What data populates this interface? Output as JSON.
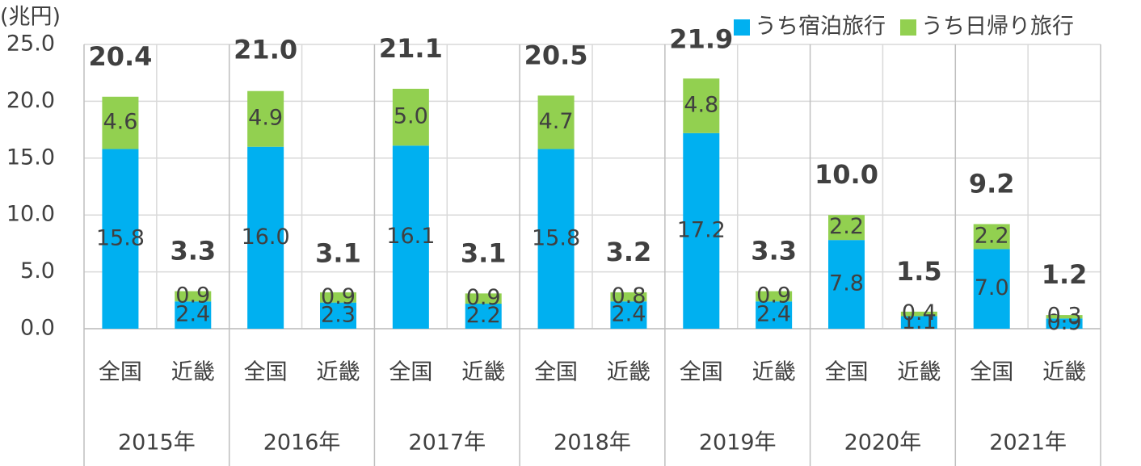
{
  "chart_data": {
    "type": "stacked_bar",
    "y_axis_label": "(兆円)",
    "categories": [
      "全国",
      "近畿",
      "全国",
      "近畿",
      "全国",
      "近畿",
      "全国",
      "近畿",
      "全国",
      "近畿",
      "全国",
      "近畿",
      "全国",
      "近畿"
    ],
    "groups": [
      "2015年",
      "2016年",
      "2017年",
      "2018年",
      "2019年",
      "2020年",
      "2021年"
    ],
    "series": [
      {
        "name": "うち宿泊旅行",
        "color": "#00b0f0",
        "values": [
          15.8,
          2.4,
          16.0,
          2.3,
          16.1,
          2.2,
          15.8,
          2.4,
          17.2,
          2.4,
          7.8,
          1.1,
          7.0,
          0.9
        ],
        "value_labels": [
          "15.8",
          "2.4",
          "16.0",
          "2.3",
          "16.1",
          "2.2",
          "15.8",
          "2.4",
          "17.2",
          "2.4",
          "7.8",
          "1.1",
          "7.0",
          "0.9"
        ]
      },
      {
        "name": "うち日帰り旅行",
        "color": "#92d050",
        "values": [
          4.6,
          0.9,
          4.9,
          0.9,
          5.0,
          0.9,
          4.7,
          0.8,
          4.8,
          0.9,
          2.2,
          0.4,
          2.2,
          0.3
        ],
        "value_labels": [
          "4.6",
          "0.9",
          "4.9",
          "0.9",
          "5.0",
          "0.9",
          "4.7",
          "0.8",
          "4.8",
          "0.9",
          "2.2",
          "0.4",
          "2.2",
          "0.3"
        ]
      }
    ],
    "totals": [
      20.4,
      3.3,
      21.0,
      3.1,
      21.1,
      3.1,
      20.5,
      3.2,
      21.9,
      3.3,
      10.0,
      1.5,
      9.2,
      1.2
    ],
    "total_labels": [
      "20.4",
      "3.3",
      "21.0",
      "3.1",
      "21.1",
      "3.1",
      "20.5",
      "3.2",
      "21.9",
      "3.3",
      "10.0",
      "1.5",
      "9.2",
      "1.2"
    ],
    "ylim": [
      0,
      25
    ],
    "yticks": [
      {
        "value": 0,
        "label": "0.0"
      },
      {
        "value": 5,
        "label": "5.0"
      },
      {
        "value": 10,
        "label": "10.0"
      },
      {
        "value": 15,
        "label": "15.0"
      },
      {
        "value": 20,
        "label": "20.0"
      },
      {
        "value": 25,
        "label": "25.0"
      }
    ],
    "grid": true,
    "legend": "top-right"
  }
}
